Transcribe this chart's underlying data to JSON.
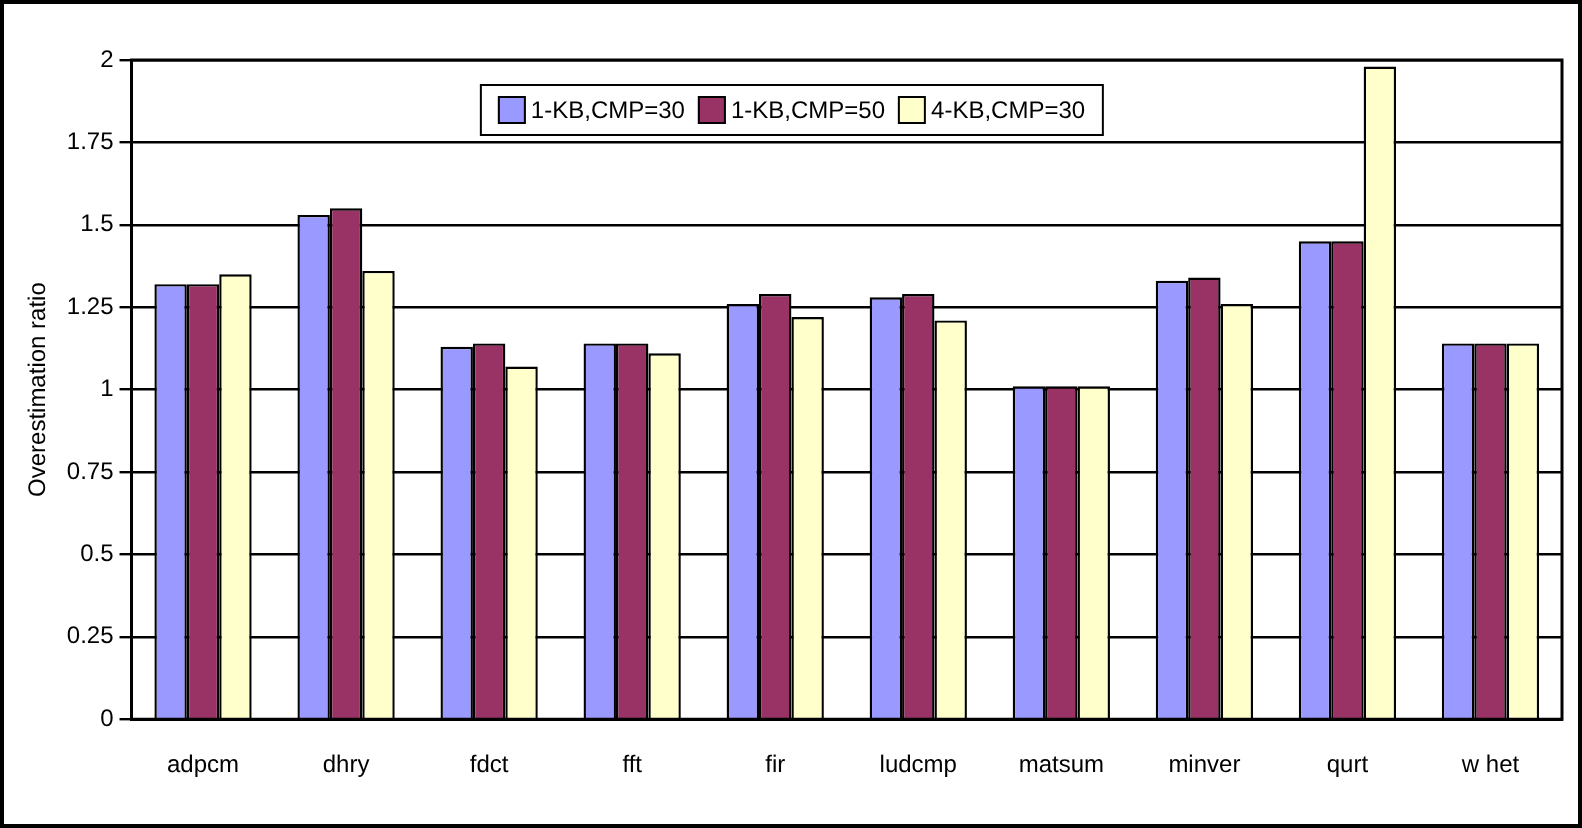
{
  "chart_data": {
    "type": "bar",
    "ylabel": "Overestimation ratio",
    "categories": [
      "adpcm",
      "dhry",
      "fdct",
      "fft",
      "fir",
      "ludcmp",
      "matsum",
      "minver",
      "qurt",
      "w het"
    ],
    "series": [
      {
        "name": "1-KB,CMP=30",
        "color": "#9999ff",
        "values": [
          1.32,
          1.53,
          1.13,
          1.14,
          1.26,
          1.28,
          1.01,
          1.33,
          1.45,
          1.14
        ]
      },
      {
        "name": "1-KB,CMP=50",
        "color": "#993366",
        "values": [
          1.32,
          1.55,
          1.14,
          1.14,
          1.29,
          1.29,
          1.01,
          1.34,
          1.45,
          1.14
        ]
      },
      {
        "name": "4-KB,CMP=30",
        "color": "#ffffcc",
        "values": [
          1.35,
          1.36,
          1.07,
          1.11,
          1.22,
          1.21,
          1.01,
          1.26,
          1.98,
          1.14
        ]
      }
    ],
    "ylim": [
      0,
      2
    ],
    "yticks": [
      0,
      0.25,
      0.5,
      0.75,
      1,
      1.25,
      1.5,
      1.75,
      2
    ],
    "grid": "y",
    "legend": "top"
  }
}
